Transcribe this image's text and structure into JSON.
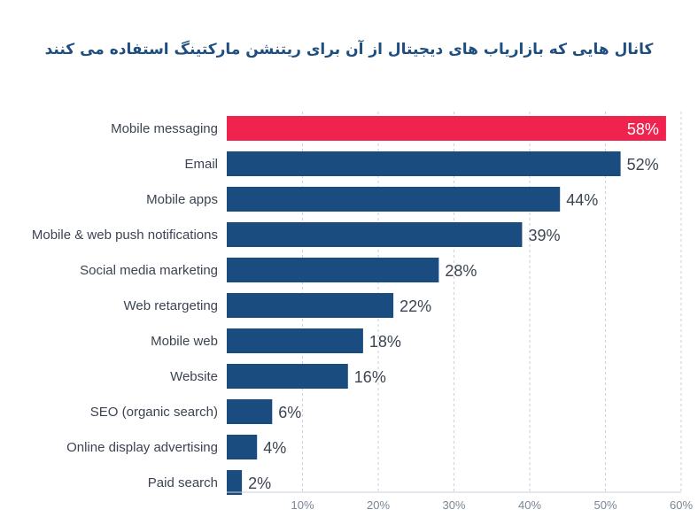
{
  "chart_data": {
    "type": "bar",
    "orientation": "horizontal",
    "title": "کانال هایی که بازاریاب های دیجیتال از آن برای ریتنشن مارکتینگ استفاده می کنند",
    "categories": [
      "Mobile messaging",
      "Email",
      "Mobile apps",
      "Mobile & web push notifications",
      "Social media marketing",
      "Web retargeting",
      "Mobile web",
      "Website",
      "SEO (organic search)",
      "Online display advertising",
      "Paid search"
    ],
    "values": [
      58,
      52,
      44,
      39,
      28,
      22,
      18,
      16,
      6,
      4,
      2
    ],
    "value_labels": [
      "58%",
      "52%",
      "44%",
      "39%",
      "28%",
      "22%",
      "18%",
      "16%",
      "6%",
      "4%",
      "2%"
    ],
    "highlight_index": 0,
    "xlim": [
      0,
      60
    ],
    "xticks": [
      10,
      20,
      30,
      40,
      50,
      60
    ],
    "xtick_labels": [
      "10%",
      "20%",
      "30%",
      "40%",
      "50%",
      "60%"
    ],
    "grid": "vertical dashed",
    "colors": {
      "bar": "#1a4c7f",
      "highlight": "#f0234e",
      "title": "#1e4e80",
      "grid": "#c9d2dc"
    }
  }
}
